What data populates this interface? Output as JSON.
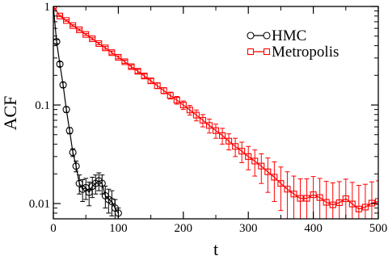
{
  "chart_data": {
    "type": "line",
    "xlabel": "t",
    "ylabel": "ACF",
    "xlim": [
      0,
      500
    ],
    "ylim": [
      0.007,
      1.0
    ],
    "yscale": "log",
    "grid": false,
    "legend_position": "top-right",
    "x_ticks": [
      0,
      100,
      200,
      300,
      400,
      500
    ],
    "y_ticks": [
      {
        "value": 0.01,
        "label": "0.01"
      },
      {
        "value": 0.1,
        "label": "0.1"
      },
      {
        "value": 1,
        "label": "1"
      }
    ],
    "series": [
      {
        "name": "HMC",
        "color": "#000000",
        "marker": "circle",
        "x": [
          0,
          5,
          10,
          15,
          20,
          25,
          30,
          35,
          40,
          45,
          50,
          55,
          60,
          65,
          70,
          75,
          80,
          85,
          90,
          95,
          100
        ],
        "y": [
          1.0,
          0.44,
          0.26,
          0.16,
          0.09,
          0.055,
          0.033,
          0.024,
          0.016,
          0.014,
          0.0145,
          0.013,
          0.015,
          0.016,
          0.017,
          0.016,
          0.012,
          0.011,
          0.0105,
          0.009,
          0.008
        ],
        "err": [
          0,
          0.02,
          0.015,
          0.01,
          0.006,
          0.004,
          0.003,
          0.003,
          0.0035,
          0.0035,
          0.0035,
          0.0035,
          0.0035,
          0.0035,
          0.0035,
          0.0035,
          0.003,
          0.003,
          0.003,
          0.002,
          0.001
        ]
      },
      {
        "name": "Metropolis",
        "color": "#ff0000",
        "marker": "square",
        "x": [
          0,
          10,
          20,
          30,
          40,
          50,
          60,
          70,
          80,
          90,
          100,
          110,
          120,
          130,
          140,
          150,
          160,
          170,
          180,
          190,
          200,
          210,
          220,
          230,
          240,
          250,
          260,
          270,
          280,
          290,
          300,
          310,
          320,
          330,
          340,
          350,
          360,
          370,
          380,
          390,
          400,
          410,
          420,
          430,
          440,
          450,
          460,
          470,
          480,
          490,
          500
        ],
        "y": [
          1.0,
          0.8,
          0.72,
          0.64,
          0.58,
          0.52,
          0.47,
          0.42,
          0.38,
          0.34,
          0.305,
          0.275,
          0.245,
          0.22,
          0.197,
          0.176,
          0.157,
          0.14,
          0.125,
          0.112,
          0.1,
          0.089,
          0.079,
          0.07,
          0.062,
          0.055,
          0.049,
          0.043,
          0.038,
          0.034,
          0.03,
          0.027,
          0.024,
          0.021,
          0.0185,
          0.016,
          0.014,
          0.0125,
          0.0113,
          0.0113,
          0.0123,
          0.0115,
          0.0103,
          0.0097,
          0.0102,
          0.0112,
          0.0099,
          0.0088,
          0.0092,
          0.0101,
          0.0105
        ],
        "err": [
          0,
          0.012,
          0.012,
          0.012,
          0.012,
          0.012,
          0.012,
          0.012,
          0.012,
          0.012,
          0.01,
          0.01,
          0.01,
          0.01,
          0.01,
          0.01,
          0.01,
          0.01,
          0.01,
          0.01,
          0.01,
          0.01,
          0.01,
          0.01,
          0.01,
          0.009,
          0.009,
          0.008,
          0.008,
          0.008,
          0.008,
          0.008,
          0.008,
          0.008,
          0.008,
          0.0075,
          0.007,
          0.0065,
          0.0065,
          0.0065,
          0.0065,
          0.0065,
          0.0065,
          0.0065,
          0.0065,
          0.0065,
          0.0065,
          0.0065,
          0.0065,
          0.0065,
          0.0065
        ]
      }
    ]
  }
}
